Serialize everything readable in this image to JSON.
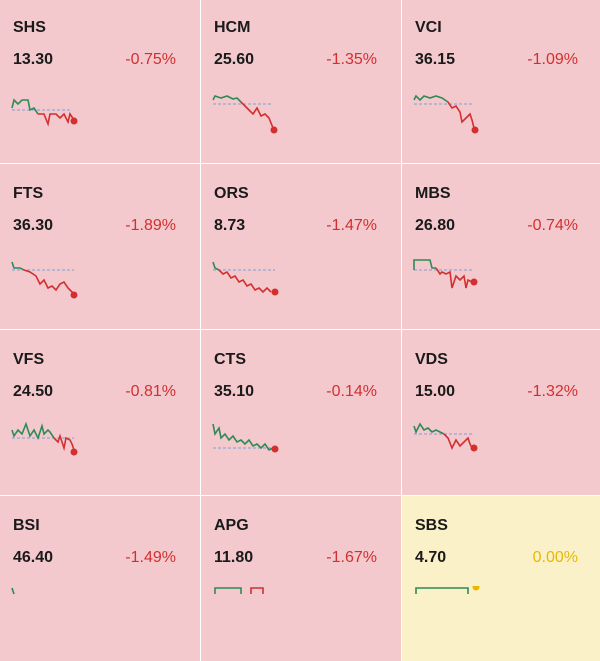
{
  "colors": {
    "down_bg": "#f3c9cd",
    "flat_bg": "#fbf1c9",
    "down_text": "#d32f2f",
    "flat_text": "#e8b800",
    "up_line": "#2e8b57",
    "down_line": "#d32f2f",
    "ref_line": "#7a9fd6"
  },
  "tiles": [
    {
      "ticker": "SHS",
      "price": "13.30",
      "change": "-0.75%",
      "status": "down"
    },
    {
      "ticker": "HCM",
      "price": "25.60",
      "change": "-1.35%",
      "status": "down"
    },
    {
      "ticker": "VCI",
      "price": "36.15",
      "change": "-1.09%",
      "status": "down"
    },
    {
      "ticker": "FTS",
      "price": "36.30",
      "change": "-1.89%",
      "status": "down"
    },
    {
      "ticker": "ORS",
      "price": "8.73",
      "change": "-1.47%",
      "status": "down"
    },
    {
      "ticker": "MBS",
      "price": "26.80",
      "change": "-0.74%",
      "status": "down"
    },
    {
      "ticker": "VFS",
      "price": "24.50",
      "change": "-0.81%",
      "status": "down"
    },
    {
      "ticker": "CTS",
      "price": "35.10",
      "change": "-0.14%",
      "status": "down"
    },
    {
      "ticker": "VDS",
      "price": "15.00",
      "change": "-1.32%",
      "status": "down"
    },
    {
      "ticker": "BSI",
      "price": "46.40",
      "change": "-1.49%",
      "status": "down"
    },
    {
      "ticker": "APG",
      "price": "11.80",
      "change": "-1.67%",
      "status": "down"
    },
    {
      "ticker": "SBS",
      "price": "4.70",
      "change": "0.00%",
      "status": "flat"
    }
  ]
}
